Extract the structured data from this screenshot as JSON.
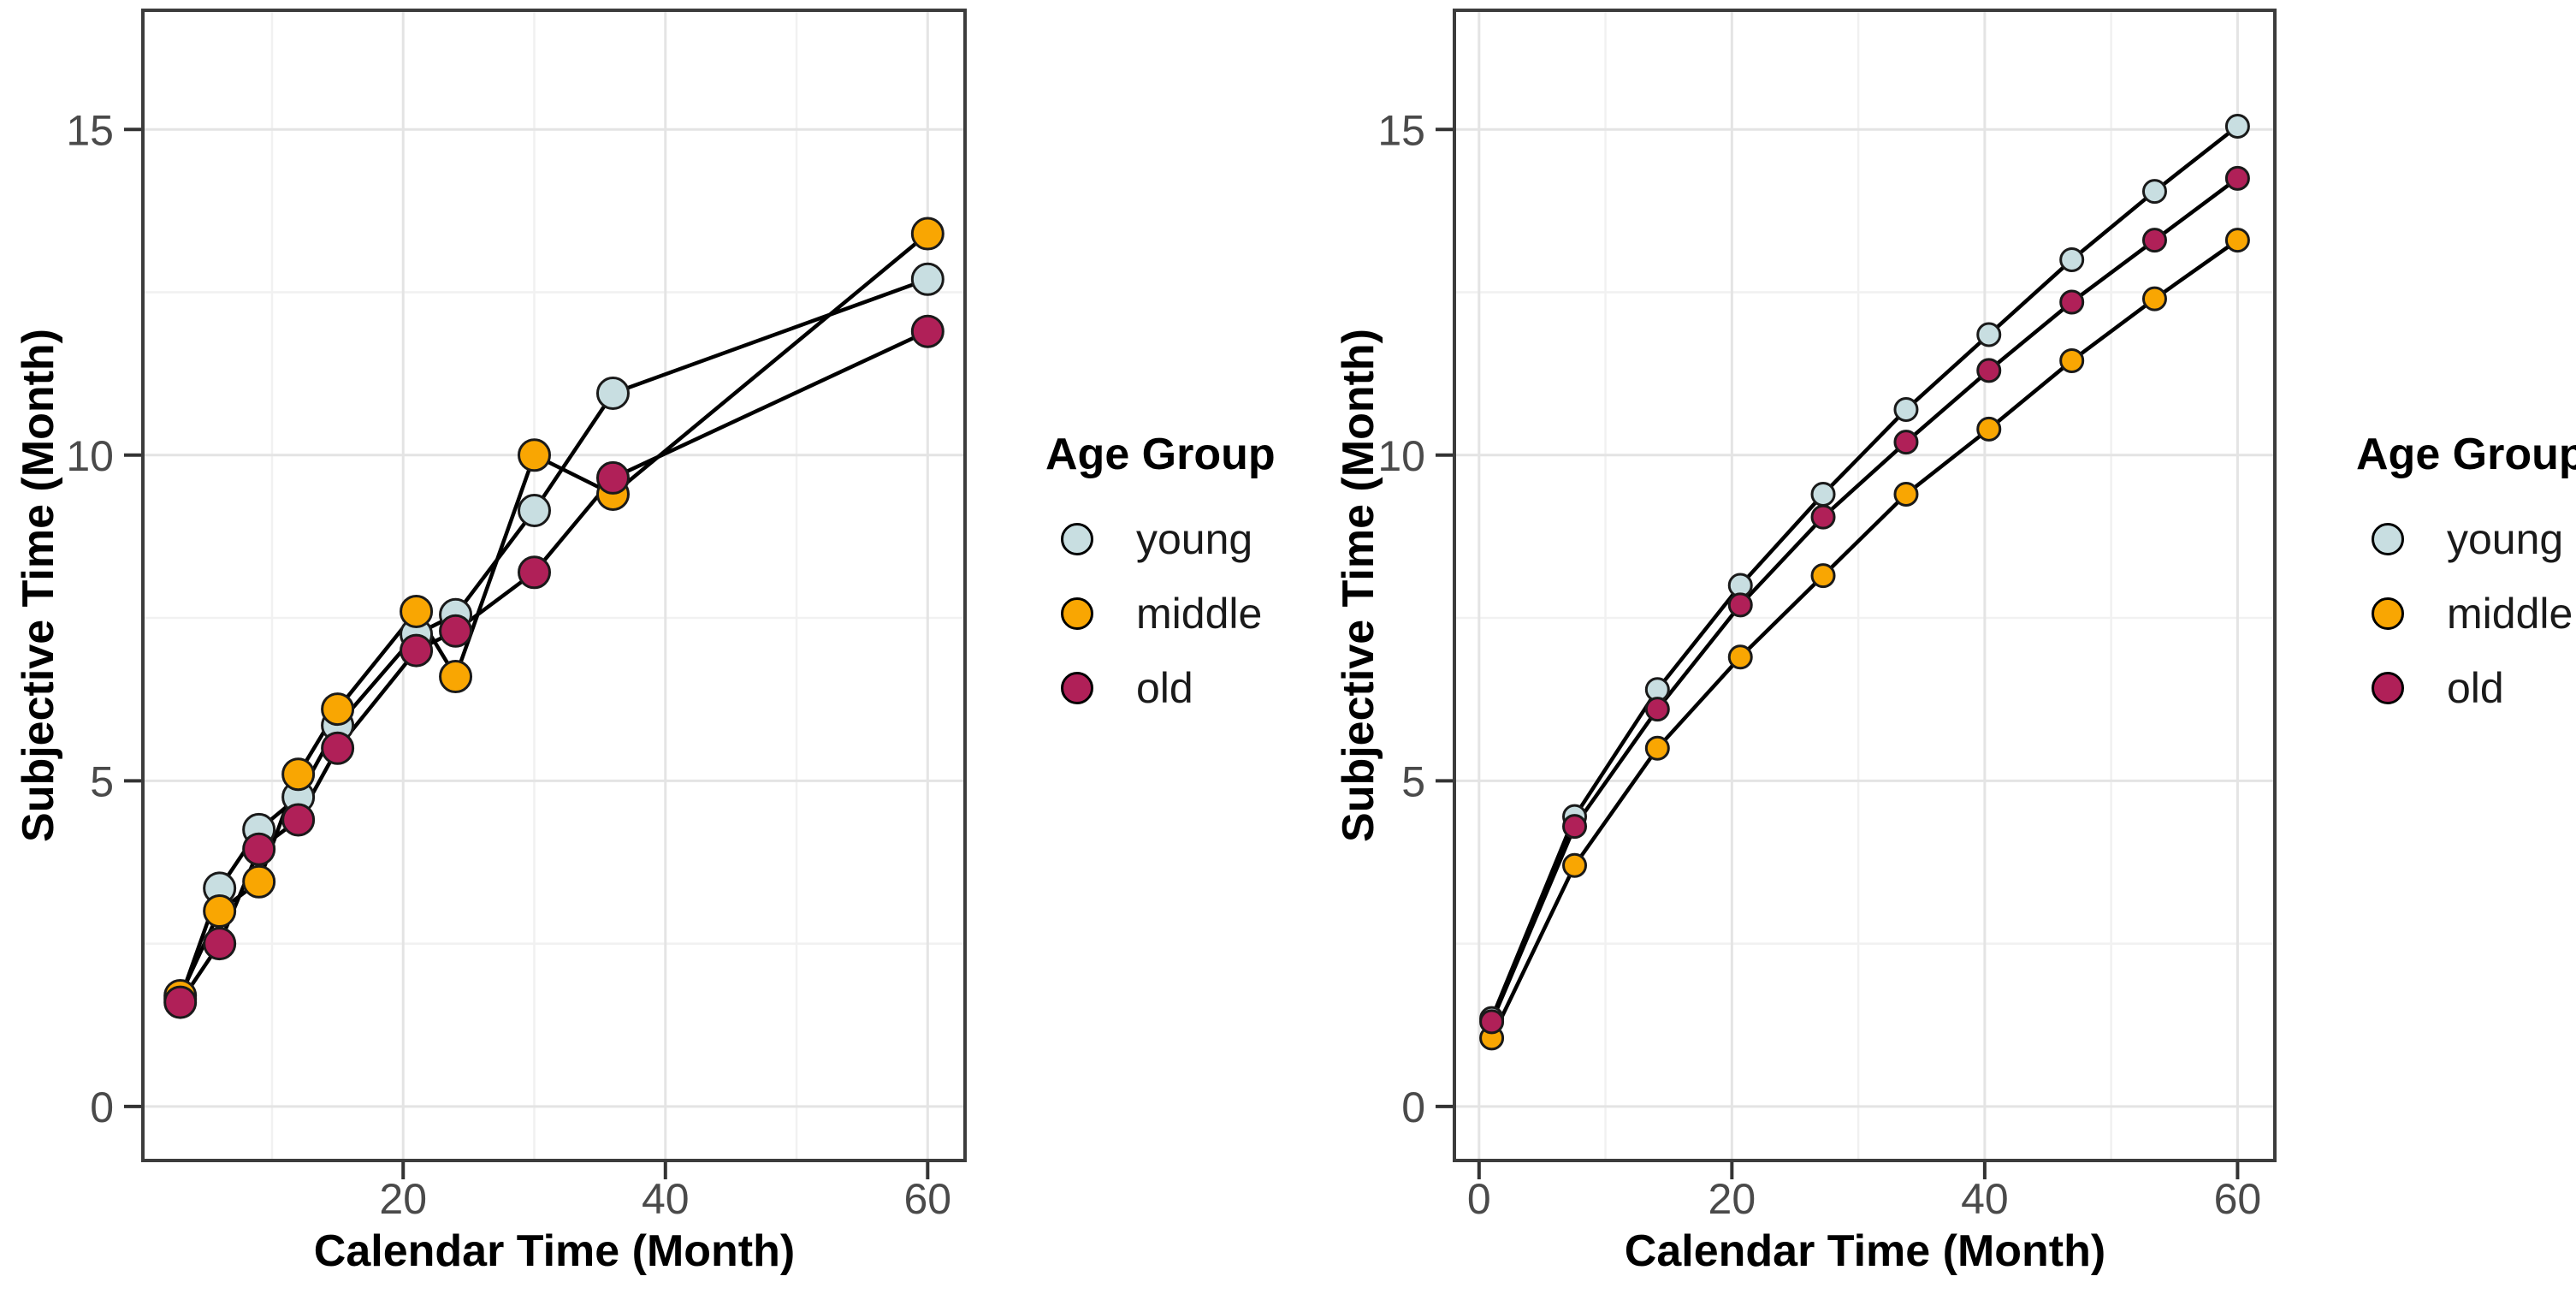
{
  "figure": {
    "background": "#ffffff"
  },
  "colors": {
    "young": "#C8DEE1",
    "middle": "#F9A602",
    "old": "#B02058",
    "line": "#000000",
    "point_stroke": "#1a1a1a",
    "panel_border": "#3c3c3c",
    "tick": "#333333",
    "grid_major": "#e4e4e4",
    "grid_minor": "#f1f1f1",
    "tick_label": "#4a4a4a",
    "axis_title": "#000000"
  },
  "legend": {
    "title": "Age Group",
    "items": [
      {
        "label": "young",
        "color_key": "young"
      },
      {
        "label": "middle",
        "color_key": "middle"
      },
      {
        "label": "old",
        "color_key": "old"
      }
    ]
  },
  "chart_data": [
    {
      "type": "line",
      "markers": true,
      "title": "",
      "xlabel": "Calendar Time (Month)",
      "ylabel": "Subjective Time (Month)",
      "xlim": [
        0.15,
        62.85
      ],
      "ylim": [
        -0.83,
        16.83
      ],
      "x_ticks": [
        20,
        40,
        60
      ],
      "x_minor": [
        10,
        30,
        50
      ],
      "y_ticks": [
        0,
        5,
        10,
        15
      ],
      "y_minor": [
        2.5,
        7.5,
        12.5
      ],
      "grid": true,
      "legend_position": "right",
      "point_radius": 18,
      "x": [
        3,
        6,
        9,
        12,
        15,
        21,
        24,
        30,
        36,
        60
      ],
      "series": [
        {
          "name": "young",
          "color_key": "young",
          "y": [
            1.65,
            3.35,
            4.25,
            4.75,
            5.85,
            7.25,
            7.55,
            9.15,
            10.95,
            12.7
          ]
        },
        {
          "name": "middle",
          "color_key": "middle",
          "y": [
            1.7,
            3.0,
            3.45,
            5.1,
            6.1,
            7.6,
            6.6,
            10.0,
            9.4,
            13.4
          ]
        },
        {
          "name": "old",
          "color_key": "old",
          "y": [
            1.6,
            2.5,
            3.95,
            4.4,
            5.5,
            7.0,
            7.3,
            8.2,
            9.65,
            11.9
          ]
        }
      ]
    },
    {
      "type": "line",
      "markers": true,
      "title": "",
      "xlabel": "Calendar Time (Month)",
      "ylabel": "Subjective Time (Month)",
      "xlim": [
        -1.95,
        62.95
      ],
      "ylim": [
        -0.83,
        16.83
      ],
      "x_ticks": [
        0,
        20,
        40,
        60
      ],
      "x_minor": [
        10,
        30,
        50
      ],
      "y_ticks": [
        0,
        5,
        10,
        15
      ],
      "y_minor": [
        2.5,
        7.5,
        12.5
      ],
      "grid": true,
      "legend_position": "right",
      "point_radius": 13,
      "x": [
        1,
        7.56,
        14.11,
        20.67,
        27.22,
        33.78,
        40.33,
        46.89,
        53.44,
        60
      ],
      "series": [
        {
          "name": "young",
          "color_key": "young",
          "y": [
            1.35,
            4.45,
            6.4,
            8.0,
            9.4,
            10.7,
            11.85,
            13.0,
            14.05,
            15.05
          ]
        },
        {
          "name": "middle",
          "color_key": "middle",
          "y": [
            1.05,
            3.7,
            5.5,
            6.9,
            8.15,
            9.4,
            10.4,
            11.45,
            12.4,
            13.3
          ]
        },
        {
          "name": "old",
          "color_key": "old",
          "y": [
            1.3,
            4.3,
            6.1,
            7.7,
            9.05,
            10.2,
            11.3,
            12.35,
            13.3,
            14.25
          ]
        }
      ]
    }
  ]
}
